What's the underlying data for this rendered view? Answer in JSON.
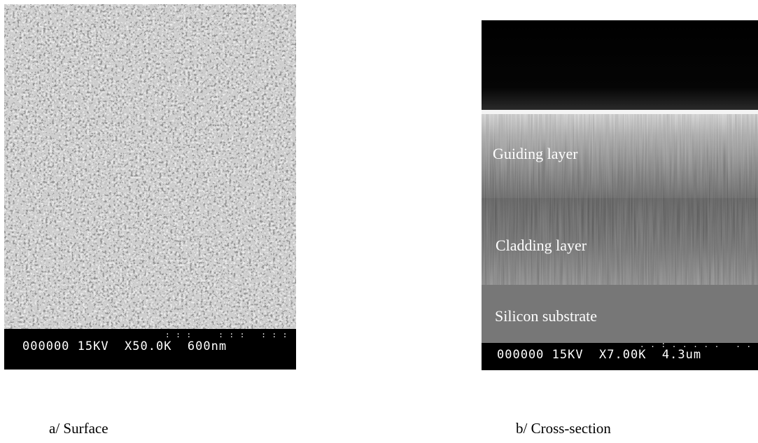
{
  "panel_a": {
    "image": "sem-micrograph-porous-surface",
    "scale_bar": {
      "text": "000000 15KV  X50.0K  600nm",
      "dots": ": : :     : : :   : : :"
    },
    "caption": "a/ Surface"
  },
  "panel_b": {
    "image": "sem-micrograph-cross-section",
    "layers": {
      "guiding": "Guiding layer",
      "cladding": "Cladding layer",
      "substrate": "Silicon substrate"
    },
    "scale_bar": {
      "text": "000000 15KV  X7.00K  4.3um",
      "dots": ". . : . . . . .   . . ."
    },
    "caption": "b/ Cross-section"
  },
  "colors": {
    "background": "#ffffff",
    "scale_bar_bg": "#000000",
    "label_text": "#ffffff"
  }
}
